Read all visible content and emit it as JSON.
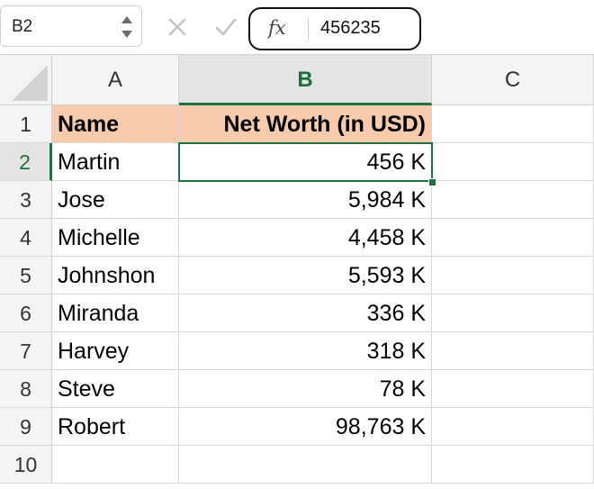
{
  "name_box": {
    "ref": "B2"
  },
  "formula_bar": {
    "fx_label": "fx",
    "value": "456235"
  },
  "columns": [
    {
      "id": "A",
      "label": "A"
    },
    {
      "id": "B",
      "label": "B"
    },
    {
      "id": "C",
      "label": "C"
    }
  ],
  "rows": [
    "1",
    "2",
    "3",
    "4",
    "5",
    "6",
    "7",
    "8",
    "9",
    "10"
  ],
  "header_row": {
    "a": "Name",
    "b": "Net Worth (in USD)"
  },
  "data_rows": [
    {
      "name": "Martin",
      "value": "456 K"
    },
    {
      "name": "Jose",
      "value": "5,984 K"
    },
    {
      "name": "Michelle",
      "value": "4,458 K"
    },
    {
      "name": "Johnshon",
      "value": "5,593 K"
    },
    {
      "name": "Miranda",
      "value": "336 K"
    },
    {
      "name": "Harvey",
      "value": "318 K"
    },
    {
      "name": "Steve",
      "value": "78 K"
    },
    {
      "name": "Robert",
      "value": "98,763 K"
    }
  ],
  "colors": {
    "header_fill": "#f8cbad",
    "selection": "#1e7145",
    "active_header_text": "#1e6e3c"
  }
}
